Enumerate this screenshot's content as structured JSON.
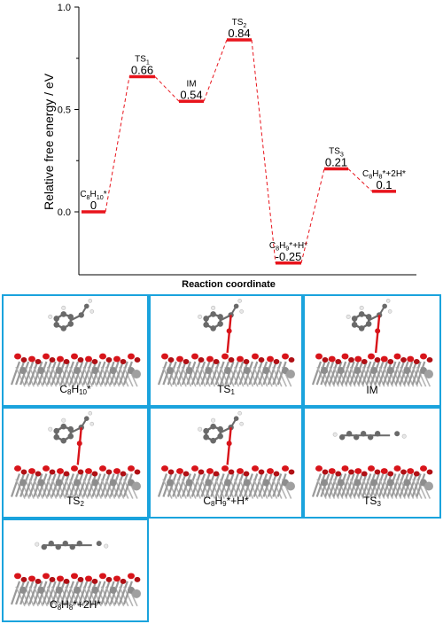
{
  "chart_data": {
    "type": "line",
    "ylabel": "Relative free energy / eV",
    "xlabel": "Reaction coordinate",
    "ylim": [
      -0.25,
      1.0
    ],
    "yticks": [
      "1.0",
      "0.5",
      "0.0"
    ],
    "points": [
      {
        "label": "C8H10*",
        "value": 0,
        "value_text": "0"
      },
      {
        "label": "TS1",
        "value": 0.66,
        "value_text": "0.66"
      },
      {
        "label": "IM",
        "value": 0.54,
        "value_text": "0.54"
      },
      {
        "label": "TS2",
        "value": 0.84,
        "value_text": "0.84"
      },
      {
        "label": "C8H9*+H*",
        "value": -0.25,
        "value_text": "-0.25"
      },
      {
        "label": "TS3",
        "value": 0.21,
        "value_text": "0.21"
      },
      {
        "label": "C8H8*+2H*",
        "value": 0.1,
        "value_text": "0.1"
      }
    ],
    "colors": {
      "level": "#e8141c",
      "connector": "#e8141c"
    }
  },
  "panels": [
    {
      "name": "C8H10*"
    },
    {
      "name": "TS1"
    },
    {
      "name": "IM"
    },
    {
      "name": "TS2"
    },
    {
      "name": "C8H9*+H*"
    },
    {
      "name": "TS3"
    },
    {
      "name": "C8H8*+2H*"
    }
  ],
  "colors": {
    "panel_border": "#1aa3dd",
    "oxygen": "#d8141a",
    "metal": "#9a9a9a",
    "carbon": "#6a6a6a",
    "hydrogen": "#e8e8e8"
  }
}
